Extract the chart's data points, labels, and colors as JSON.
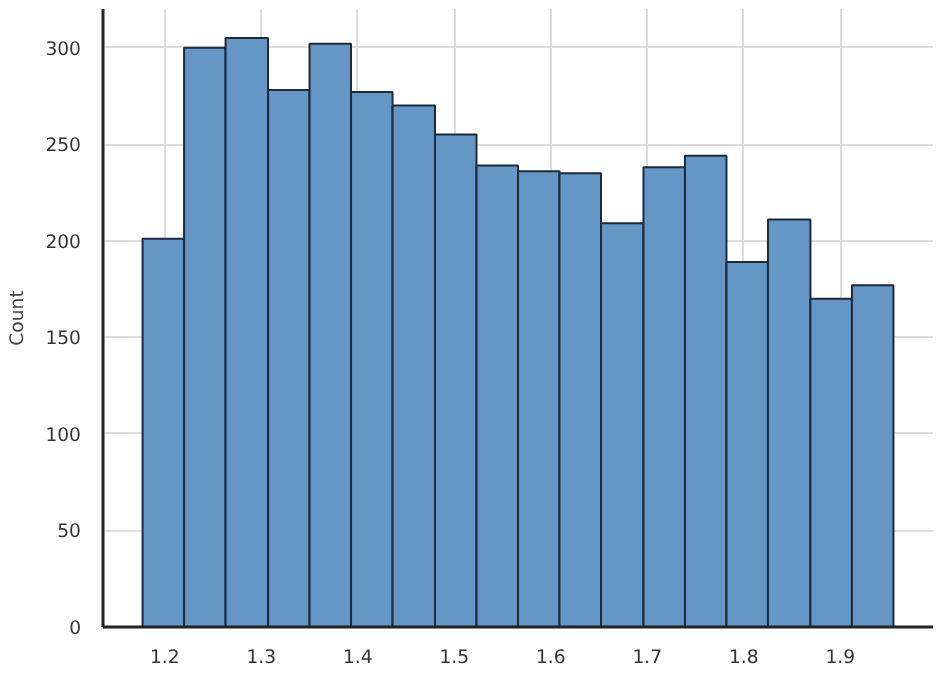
{
  "chart_data": {
    "type": "histogram",
    "ylabel": "Count",
    "color": "#6497c6",
    "bins": [
      1.177,
      1.22,
      1.263,
      1.307,
      1.35,
      1.393,
      1.436,
      1.48,
      1.523,
      1.566,
      1.609,
      1.652,
      1.696,
      1.739,
      1.782,
      1.825,
      1.869,
      1.912,
      1.955
    ],
    "values": [
      201,
      300,
      305,
      278,
      302,
      277,
      270,
      255,
      239,
      236,
      235,
      209,
      238,
      244,
      189,
      211,
      170,
      177
    ],
    "xlim": [
      1.136,
      1.996
    ],
    "ylim": [
      0,
      320
    ],
    "xticks": [
      1.2,
      1.3,
      1.4,
      1.5,
      1.6,
      1.7,
      1.8,
      1.9
    ],
    "yticks": [
      0,
      50,
      100,
      150,
      200,
      250,
      300
    ],
    "grid": true
  }
}
